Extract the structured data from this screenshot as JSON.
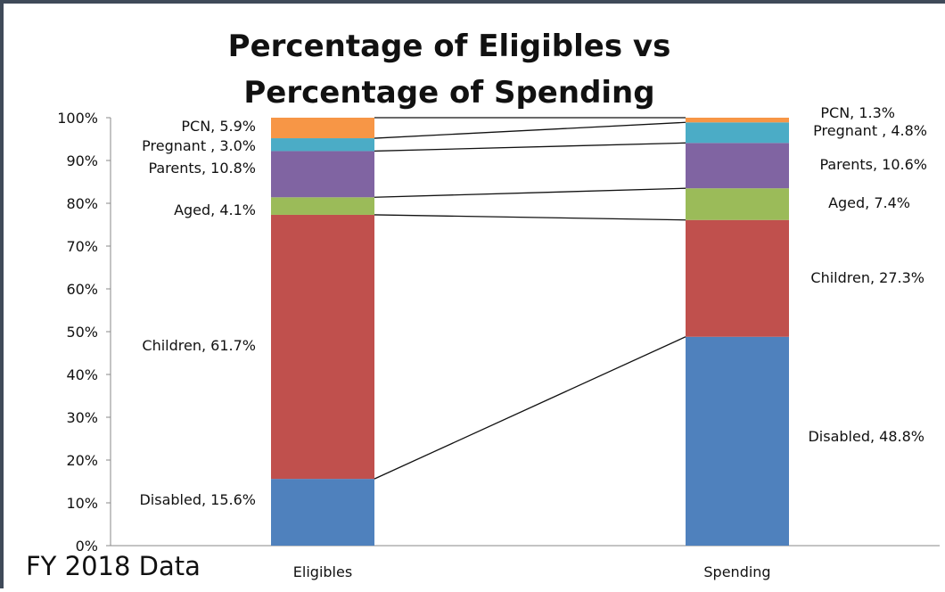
{
  "chart_data": {
    "type": "bar",
    "stacked": true,
    "title": "Percentage of Eligibles vs Percentage of Spending",
    "title_lines": [
      "Percentage of Eligibles vs",
      "Percentage of Spending"
    ],
    "categories": [
      "Eligibles",
      "Spending"
    ],
    "ylim": [
      0,
      100
    ],
    "yticks": [
      "0%",
      "10%",
      "20%",
      "30%",
      "40%",
      "50%",
      "60%",
      "70%",
      "80%",
      "90%",
      "100%"
    ],
    "grid": false,
    "legend": "none",
    "series": [
      {
        "name": "Disabled",
        "values": [
          15.6,
          48.8
        ],
        "color": "#4f81bd",
        "labels": [
          "Disabled, 15.6%",
          "Disabled, 48.8%"
        ]
      },
      {
        "name": "Children",
        "values": [
          61.7,
          27.3
        ],
        "color": "#c0504d",
        "labels": [
          "Children, 61.7%",
          "Children, 27.3%"
        ]
      },
      {
        "name": "Aged",
        "values": [
          4.1,
          7.4
        ],
        "color": "#9bbb59",
        "labels": [
          "Aged, 4.1%",
          "Aged, 7.4%"
        ]
      },
      {
        "name": "Parents",
        "values": [
          10.8,
          10.6
        ],
        "color": "#8064a2",
        "labels": [
          "Parents, 10.8%",
          "Parents, 10.6%"
        ]
      },
      {
        "name": "Pregnant",
        "values": [
          3.0,
          4.8
        ],
        "color": "#4bacc6",
        "labels": [
          "Pregnant , 3.0%",
          "Pregnant , 4.8%"
        ]
      },
      {
        "name": "PCN",
        "values": [
          5.9,
          1.3
        ],
        "color": "#f79646",
        "labels": [
          "PCN, 5.9%",
          "PCN, 1.3%"
        ]
      }
    ]
  },
  "footnote": "FY 2018 Data"
}
